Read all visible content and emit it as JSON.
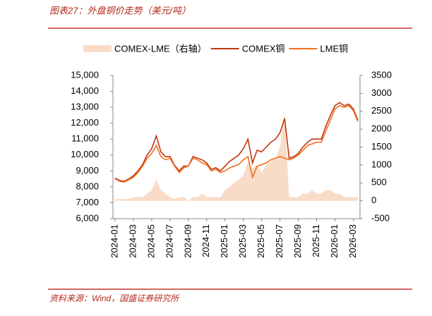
{
  "title": "图表27：外盘铜价走势（美元/吨）",
  "source": "资料来源：Wind，国盛证券研究所",
  "chart_data": {
    "type": "line",
    "categories": [
      "2024-01",
      null,
      null,
      null,
      "2024-03",
      null,
      null,
      null,
      "2024-05",
      null,
      null,
      null,
      "2024-07",
      null,
      null,
      null,
      "2024-09",
      null,
      null,
      null,
      "2024-11",
      null,
      null,
      null,
      "2025-01",
      null,
      null,
      null,
      "2025-03",
      null,
      null,
      null,
      "2025-05",
      null,
      null,
      null,
      "2025-07",
      null,
      null,
      null,
      "2025-09",
      null,
      null,
      null,
      "2025-11",
      null,
      null,
      null,
      "2026-01",
      null,
      null,
      null,
      "2026-03",
      null
    ],
    "series": [
      {
        "name": "COMEX-LME（右轴）",
        "type": "area",
        "axis": "y2",
        "color": "#f9dcc8",
        "values": [
          50,
          50,
          50,
          50,
          100,
          100,
          100,
          200,
          300,
          600,
          300,
          200,
          100,
          50,
          100,
          100,
          0,
          100,
          100,
          200,
          100,
          100,
          100,
          100,
          300,
          400,
          500,
          600,
          700,
          1100,
          900,
          1000,
          800,
          1000,
          1100,
          1200,
          1500,
          2500,
          100,
          100,
          100,
          200,
          200,
          300,
          200,
          200,
          300,
          300,
          200,
          200,
          100,
          100,
          100,
          100
        ]
      },
      {
        "name": "COMEX铜",
        "type": "line",
        "color": "#c23512",
        "values": [
          8550,
          8400,
          8350,
          8500,
          8700,
          9000,
          9400,
          10000,
          10400,
          11200,
          10200,
          9900,
          9900,
          9350,
          9000,
          9300,
          9300,
          9900,
          9800,
          9700,
          9500,
          9100,
          9200,
          9000,
          9300,
          9600,
          9800,
          10000,
          10400,
          11000,
          9500,
          10300,
          10200,
          10500,
          10800,
          11000,
          11400,
          12300,
          9800,
          9900,
          10100,
          10500,
          10800,
          11000,
          11000,
          11000,
          11800,
          12500,
          13100,
          13300,
          13100,
          13200,
          12900,
          12200
        ]
      },
      {
        "name": "LME铜",
        "type": "line",
        "color": "#f36f21",
        "values": [
          8500,
          8350,
          8300,
          8450,
          8600,
          8900,
          9300,
          9800,
          10100,
          10600,
          9900,
          9700,
          9800,
          9300,
          8900,
          9200,
          9300,
          9800,
          9700,
          9500,
          9400,
          9000,
          9100,
          8900,
          9000,
          9200,
          9300,
          9400,
          9700,
          9900,
          8600,
          9300,
          9400,
          9500,
          9700,
          9800,
          9900,
          9800,
          9700,
          9800,
          10000,
          10300,
          10600,
          10700,
          10800,
          10800,
          11500,
          12200,
          12900,
          13100,
          13000,
          13100,
          12800,
          12100
        ]
      }
    ],
    "ylim": [
      6000,
      15000
    ],
    "yticks": [
      {
        "value": 6000,
        "label": "6,000"
      },
      {
        "value": 7000,
        "label": "7,000"
      },
      {
        "value": 8000,
        "label": "8,000"
      },
      {
        "value": 9000,
        "label": "9,000"
      },
      {
        "value": 10000,
        "label": "10,000"
      },
      {
        "value": 11000,
        "label": "11,000"
      },
      {
        "value": 12000,
        "label": "12,000"
      },
      {
        "value": 13000,
        "label": "13,000"
      },
      {
        "value": 14000,
        "label": "14,000"
      },
      {
        "value": 15000,
        "label": "15,000"
      }
    ],
    "y2lim": [
      -500,
      3500
    ],
    "y2ticks": [
      -500,
      0,
      500,
      1000,
      1500,
      2000,
      2500,
      3000,
      3500
    ],
    "grid": false
  }
}
